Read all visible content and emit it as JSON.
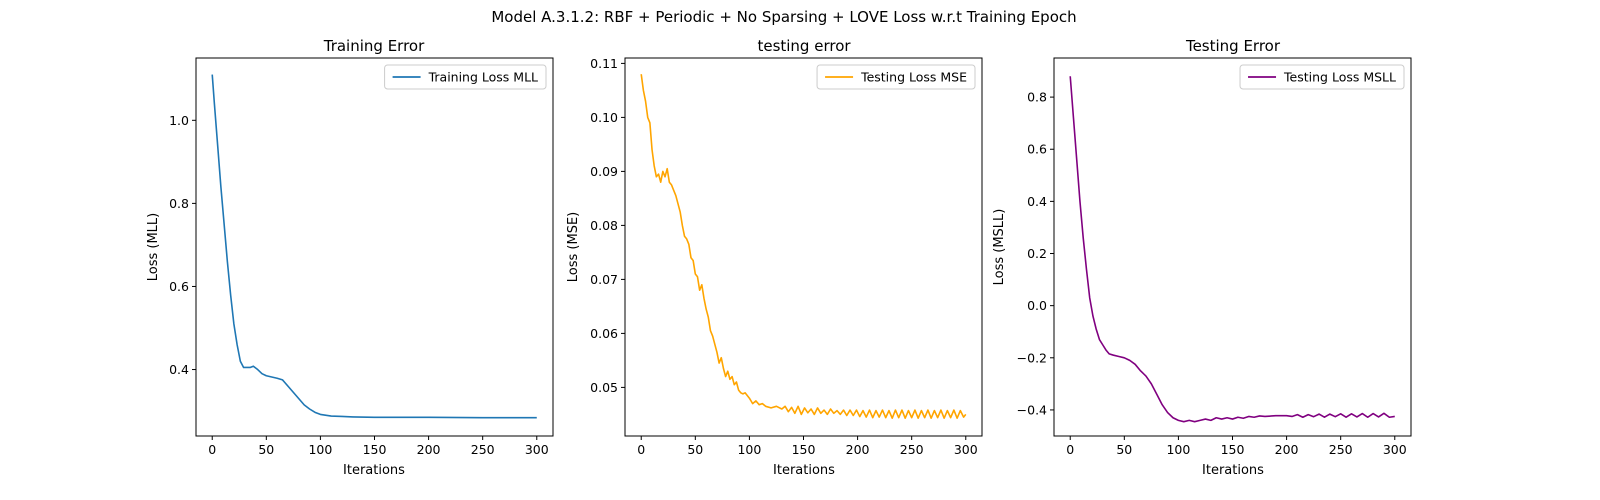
{
  "figure": {
    "suptitle": "Model A.3.1.2: RBF + Periodic + No Sparsing + LOVE Loss w.r.t Training Epoch"
  },
  "chart_data": [
    {
      "type": "line",
      "title": "Training Error",
      "xlabel": "Iterations",
      "ylabel": "Loss (MLL)",
      "xlim": [
        -15,
        315
      ],
      "ylim": [
        0.24,
        1.15
      ],
      "xticks": [
        0,
        50,
        100,
        150,
        200,
        250,
        300
      ],
      "yticks": [
        0.4,
        0.6,
        0.8,
        1.0
      ],
      "xtick_labels": [
        "0",
        "50",
        "100",
        "150",
        "200",
        "250",
        "300"
      ],
      "ytick_labels": [
        "0.4",
        "0.6",
        "0.8",
        "1.0"
      ],
      "grid": false,
      "legend": "top-right",
      "series": [
        {
          "name": "Training Loss MLL",
          "color": "#1f77b4",
          "x": [
            0,
            2,
            5,
            8,
            11,
            14,
            17,
            20,
            23,
            26,
            29,
            32,
            35,
            38,
            42,
            46,
            50,
            55,
            60,
            65,
            70,
            75,
            80,
            85,
            90,
            95,
            100,
            110,
            120,
            130,
            150,
            200,
            250,
            300
          ],
          "y": [
            1.11,
            1.04,
            0.94,
            0.84,
            0.75,
            0.66,
            0.58,
            0.51,
            0.46,
            0.42,
            0.405,
            0.405,
            0.405,
            0.408,
            0.4,
            0.39,
            0.385,
            0.382,
            0.379,
            0.375,
            0.36,
            0.345,
            0.33,
            0.315,
            0.305,
            0.297,
            0.292,
            0.288,
            0.287,
            0.286,
            0.285,
            0.285,
            0.284,
            0.284
          ]
        }
      ]
    },
    {
      "type": "line",
      "title": "testing error",
      "xlabel": "Iterations",
      "ylabel": "Loss (MSE)",
      "xlim": [
        -15,
        315
      ],
      "ylim": [
        0.041,
        0.111
      ],
      "xticks": [
        0,
        50,
        100,
        150,
        200,
        250,
        300
      ],
      "yticks": [
        0.05,
        0.06,
        0.07,
        0.08,
        0.09,
        0.1,
        0.11
      ],
      "xtick_labels": [
        "0",
        "50",
        "100",
        "150",
        "200",
        "250",
        "300"
      ],
      "ytick_labels": [
        "0.05",
        "0.06",
        "0.07",
        "0.08",
        "0.09",
        "0.10",
        "0.11"
      ],
      "grid": false,
      "legend": "top-right",
      "series": [
        {
          "name": "Testing Loss MSE",
          "color": "#ffa500",
          "x": [
            0,
            2,
            4,
            6,
            8,
            10,
            12,
            14,
            16,
            18,
            20,
            22,
            24,
            26,
            28,
            30,
            32,
            34,
            36,
            38,
            40,
            42,
            44,
            46,
            48,
            50,
            52,
            54,
            56,
            58,
            60,
            62,
            64,
            66,
            68,
            70,
            72,
            74,
            76,
            78,
            80,
            82,
            84,
            86,
            88,
            90,
            92,
            94,
            96,
            98,
            100,
            103,
            106,
            109,
            112,
            115,
            120,
            125,
            130,
            133,
            136,
            139,
            142,
            145,
            148,
            151,
            154,
            157,
            160,
            163,
            166,
            169,
            172,
            175,
            178,
            181,
            184,
            187,
            190,
            193,
            196,
            199,
            202,
            205,
            208,
            211,
            214,
            217,
            220,
            223,
            226,
            229,
            232,
            235,
            238,
            241,
            244,
            247,
            250,
            253,
            256,
            259,
            262,
            265,
            268,
            271,
            274,
            277,
            280,
            283,
            286,
            289,
            292,
            295,
            298,
            300
          ],
          "y": [
            0.108,
            0.105,
            0.103,
            0.1,
            0.099,
            0.094,
            0.091,
            0.089,
            0.0895,
            0.088,
            0.09,
            0.089,
            0.0905,
            0.088,
            0.0875,
            0.0865,
            0.0855,
            0.084,
            0.0825,
            0.08,
            0.078,
            0.0775,
            0.0765,
            0.074,
            0.0735,
            0.071,
            0.0705,
            0.068,
            0.069,
            0.0665,
            0.0645,
            0.063,
            0.0605,
            0.0595,
            0.058,
            0.0565,
            0.0545,
            0.0555,
            0.0535,
            0.052,
            0.053,
            0.0515,
            0.052,
            0.0505,
            0.051,
            0.0495,
            0.049,
            0.0488,
            0.049,
            0.0485,
            0.048,
            0.047,
            0.0475,
            0.0468,
            0.047,
            0.0465,
            0.0462,
            0.0465,
            0.046,
            0.0465,
            0.0455,
            0.0463,
            0.0452,
            0.0465,
            0.045,
            0.0462,
            0.0453,
            0.046,
            0.045,
            0.0462,
            0.0452,
            0.0458,
            0.045,
            0.046,
            0.0452,
            0.0457,
            0.045,
            0.0458,
            0.0448,
            0.0458,
            0.0448,
            0.0458,
            0.0446,
            0.0457,
            0.0445,
            0.0458,
            0.0444,
            0.0457,
            0.0445,
            0.0458,
            0.0444,
            0.0457,
            0.0443,
            0.0458,
            0.0444,
            0.0458,
            0.0443,
            0.0457,
            0.0444,
            0.0458,
            0.0443,
            0.0457,
            0.0444,
            0.0458,
            0.0443,
            0.0457,
            0.0444,
            0.0458,
            0.0443,
            0.0457,
            0.0444,
            0.0458,
            0.0443,
            0.0457,
            0.0445,
            0.045
          ]
        }
      ]
    },
    {
      "type": "line",
      "title": "Testing Error",
      "xlabel": "Iterations",
      "ylabel": "Loss (MSLL)",
      "xlim": [
        -15,
        315
      ],
      "ylim": [
        -0.5,
        0.95
      ],
      "xticks": [
        0,
        50,
        100,
        150,
        200,
        250,
        300
      ],
      "yticks": [
        -0.4,
        -0.2,
        0.0,
        0.2,
        0.4,
        0.6,
        0.8
      ],
      "xtick_labels": [
        "0",
        "50",
        "100",
        "150",
        "200",
        "250",
        "300"
      ],
      "ytick_labels": [
        "−0.4",
        "−0.2",
        "0.0",
        "0.2",
        "0.4",
        "0.6",
        "0.8"
      ],
      "grid": false,
      "legend": "top-right",
      "series": [
        {
          "name": "Testing Loss MSLL",
          "color": "#800080",
          "x": [
            0,
            3,
            6,
            9,
            12,
            15,
            18,
            21,
            24,
            27,
            30,
            33,
            36,
            40,
            45,
            50,
            55,
            60,
            65,
            70,
            75,
            80,
            85,
            90,
            95,
            100,
            105,
            110,
            115,
            120,
            125,
            130,
            135,
            140,
            145,
            150,
            155,
            160,
            165,
            170,
            175,
            180,
            190,
            200,
            205,
            210,
            215,
            220,
            225,
            230,
            235,
            240,
            245,
            250,
            255,
            260,
            265,
            270,
            275,
            280,
            285,
            290,
            295,
            300
          ],
          "y": [
            0.88,
            0.72,
            0.56,
            0.4,
            0.26,
            0.14,
            0.03,
            -0.04,
            -0.09,
            -0.13,
            -0.15,
            -0.17,
            -0.185,
            -0.19,
            -0.195,
            -0.2,
            -0.21,
            -0.225,
            -0.25,
            -0.27,
            -0.3,
            -0.34,
            -0.38,
            -0.41,
            -0.43,
            -0.44,
            -0.445,
            -0.44,
            -0.445,
            -0.44,
            -0.435,
            -0.44,
            -0.43,
            -0.435,
            -0.43,
            -0.435,
            -0.428,
            -0.432,
            -0.425,
            -0.428,
            -0.423,
            -0.425,
            -0.422,
            -0.422,
            -0.425,
            -0.418,
            -0.428,
            -0.418,
            -0.426,
            -0.416,
            -0.428,
            -0.416,
            -0.426,
            -0.415,
            -0.428,
            -0.415,
            -0.427,
            -0.414,
            -0.428,
            -0.414,
            -0.427,
            -0.413,
            -0.428,
            -0.425
          ]
        }
      ]
    }
  ]
}
